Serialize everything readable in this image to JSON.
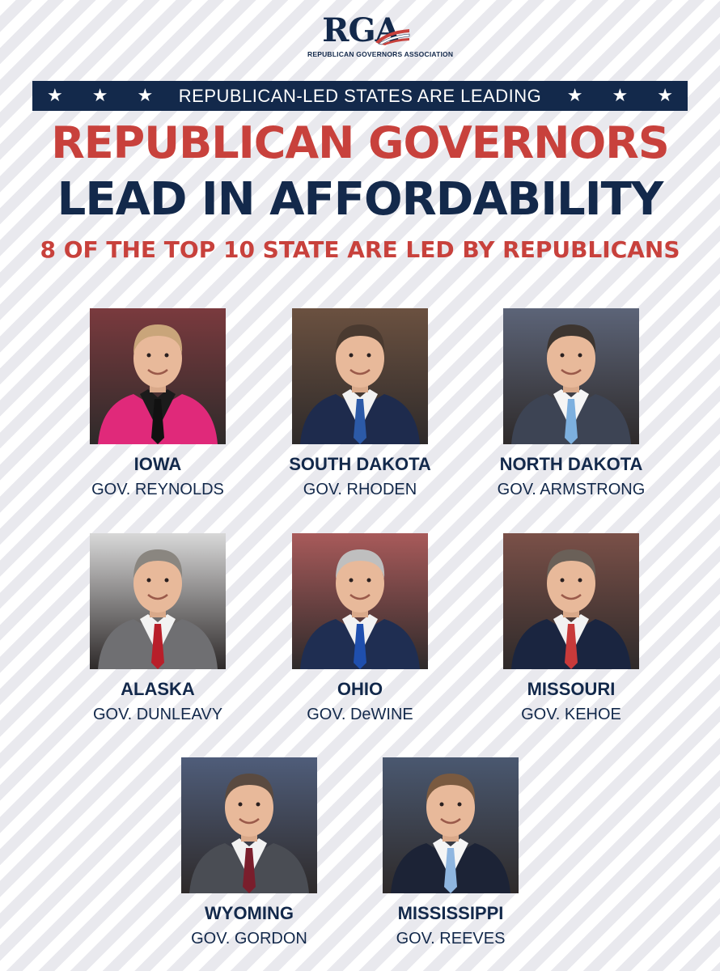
{
  "logo": {
    "word": "RGA",
    "subtitle": "REPUBLICAN GOVERNORS ASSOCIATION"
  },
  "banner": {
    "text": "REPUBLICAN-LED STATES ARE LEADING",
    "star": "★"
  },
  "headline": {
    "line1": "REPUBLICAN GOVERNORS",
    "line2": "LEAD IN AFFORDABILITY",
    "subline": "8 OF THE TOP 10 STATE ARE LED BY REPUBLICANS"
  },
  "governors": [
    {
      "state": "IOWA",
      "name": "GOV. REYNOLDS",
      "suit": "#e0297a",
      "tie": "#111111",
      "shirt": "#1b1b1b",
      "hair": "#c9a57a",
      "bg": "#7a3a3e"
    },
    {
      "state": "SOUTH DAKOTA",
      "name": "GOV. RHODEN",
      "suit": "#1e2b4d",
      "tie": "#2c5aa8",
      "shirt": "#f2f2f2",
      "hair": "#4a3a30",
      "bg": "#6b5140"
    },
    {
      "state": "NORTH DAKOTA",
      "name": "GOV. ARMSTRONG",
      "suit": "#3d4454",
      "tie": "#7db0df",
      "shirt": "#f5f5f5",
      "hair": "#3d3530",
      "bg": "#5c6478"
    },
    {
      "state": "ALASKA",
      "name": "GOV. DUNLEAVY",
      "suit": "#6f6f72",
      "tie": "#b81f2a",
      "shirt": "#f2f2f2",
      "hair": "#8a8680",
      "bg": "#d8d8d8"
    },
    {
      "state": "OHIO",
      "name": "GOV. DeWINE",
      "suit": "#1f2e52",
      "tie": "#1f4fae",
      "shirt": "#f2f2f2",
      "hair": "#bfbfbf",
      "bg": "#a85a5a"
    },
    {
      "state": "MISSOURI",
      "name": "GOV. KEHOE",
      "suit": "#1a2540",
      "tie": "#c83a3a",
      "shirt": "#f2f2f2",
      "hair": "#6a6058",
      "bg": "#7a5048"
    },
    {
      "state": "WYOMING",
      "name": "GOV. GORDON",
      "suit": "#4a4d54",
      "tie": "#7a1e2c",
      "shirt": "#f2f2f2",
      "hair": "#5a4a40",
      "bg": "#4f5d7a"
    },
    {
      "state": "MISSISSIPPI",
      "name": "GOV. REEVES",
      "suit": "#1c2336",
      "tie": "#8fb6e0",
      "shirt": "#f5f5f5",
      "hair": "#7a5a40",
      "bg": "#4a5870"
    }
  ],
  "colors": {
    "navy": "#13294b",
    "red": "#c8413c"
  }
}
